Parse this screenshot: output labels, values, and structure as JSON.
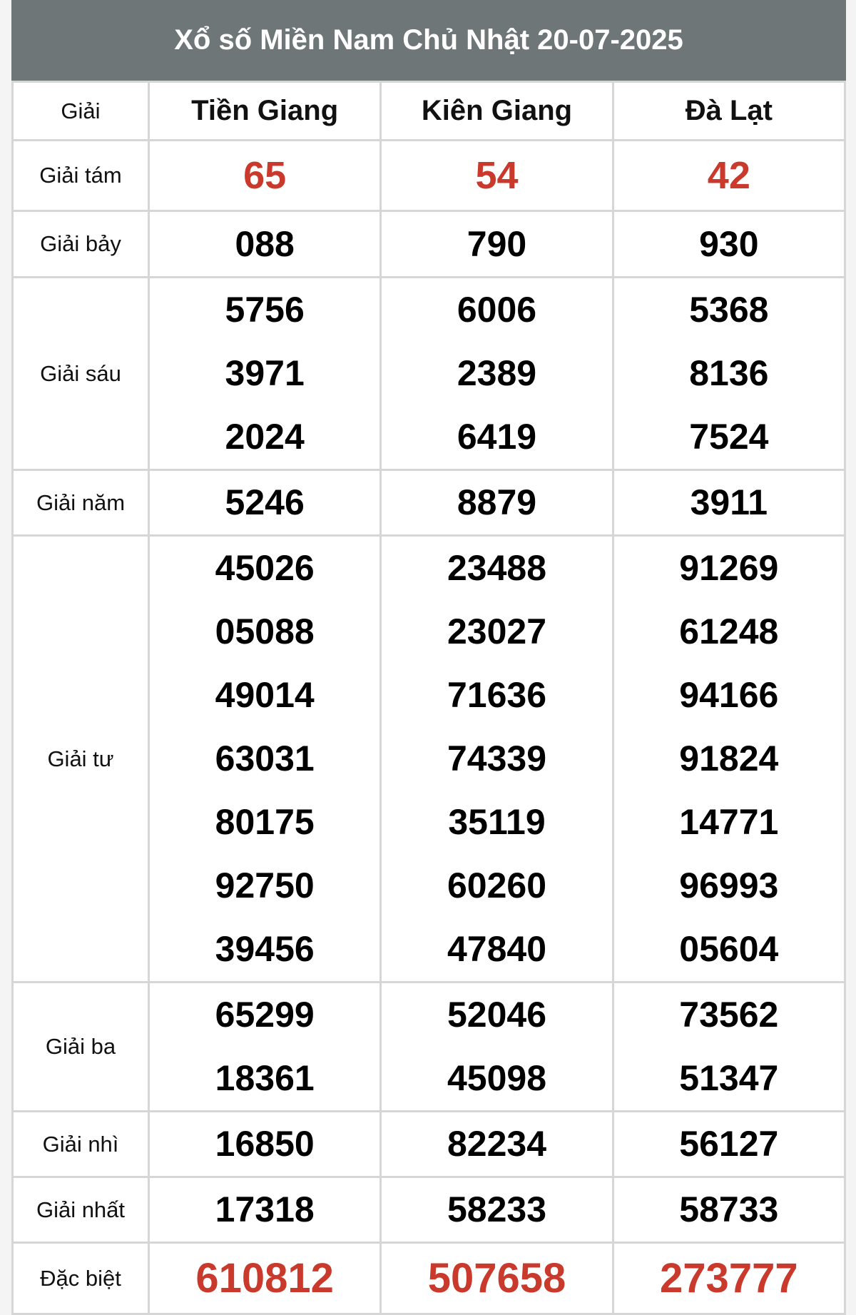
{
  "title": "Xổ số Miền Nam Chủ Nhật 20-07-2025",
  "header": {
    "label": "Giải",
    "provinces": [
      "Tiền Giang",
      "Kiên Giang",
      "Đà Lạt"
    ]
  },
  "accent_color": "#c9392c",
  "rows": [
    {
      "label": "Giải tám",
      "highlight": true,
      "values": [
        [
          "65"
        ],
        [
          "54"
        ],
        [
          "42"
        ]
      ]
    },
    {
      "label": "Giải bảy",
      "values": [
        [
          "088"
        ],
        [
          "790"
        ],
        [
          "930"
        ]
      ]
    },
    {
      "label": "Giải sáu",
      "values": [
        [
          "5756",
          "3971",
          "2024"
        ],
        [
          "6006",
          "2389",
          "6419"
        ],
        [
          "5368",
          "8136",
          "7524"
        ]
      ]
    },
    {
      "label": "Giải năm",
      "values": [
        [
          "5246"
        ],
        [
          "8879"
        ],
        [
          "3911"
        ]
      ]
    },
    {
      "label": "Giải tư",
      "values": [
        [
          "45026",
          "05088",
          "49014",
          "63031",
          "80175",
          "92750",
          "39456"
        ],
        [
          "23488",
          "23027",
          "71636",
          "74339",
          "35119",
          "60260",
          "47840"
        ],
        [
          "91269",
          "61248",
          "94166",
          "91824",
          "14771",
          "96993",
          "05604"
        ]
      ]
    },
    {
      "label": "Giải ba",
      "values": [
        [
          "65299",
          "18361"
        ],
        [
          "52046",
          "45098"
        ],
        [
          "73562",
          "51347"
        ]
      ]
    },
    {
      "label": "Giải nhì",
      "values": [
        [
          "16850"
        ],
        [
          "82234"
        ],
        [
          "56127"
        ]
      ]
    },
    {
      "label": "Giải nhất",
      "values": [
        [
          "17318"
        ],
        [
          "58233"
        ],
        [
          "58733"
        ]
      ]
    },
    {
      "label": "Đặc biệt",
      "special": true,
      "values": [
        [
          "610812"
        ],
        [
          "507658"
        ],
        [
          "273777"
        ]
      ]
    }
  ]
}
